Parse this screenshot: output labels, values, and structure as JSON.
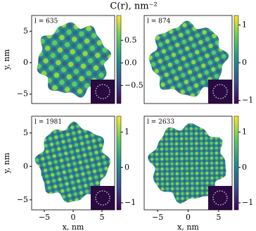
{
  "title": "C(r), nm⁻²",
  "chart_data": [
    {
      "type": "heatmap",
      "annotation": "l = 635",
      "xlim": [
        -7.2,
        7.2
      ],
      "ylim": [
        -6.5,
        7.5
      ],
      "yticks": [
        5,
        0,
        {
          "value": -5,
          "label": "−5"
        }
      ],
      "y_label": "y, nm",
      "clim": [
        -0.9,
        1.05
      ],
      "cticks": [
        0.5,
        {
          "value": 0,
          "label": "0.0"
        },
        {
          "value": -0.5,
          "label": "−0.5"
        }
      ]
    },
    {
      "type": "heatmap",
      "annotation": "l = 874",
      "xlim": [
        -7.2,
        7.2
      ],
      "ylim": [
        -6.5,
        7.5
      ],
      "clim": [
        -1.08,
        1.25
      ],
      "cticks": [
        1,
        0,
        {
          "value": -1,
          "label": "−1"
        }
      ]
    },
    {
      "type": "heatmap",
      "annotation": "l = 1981",
      "xlim": [
        -7.2,
        7.2
      ],
      "ylim": [
        -6.5,
        7.5
      ],
      "yticks": [
        5,
        0,
        {
          "value": -5,
          "label": "−5"
        }
      ],
      "y_label": "y, nm",
      "xticks": [
        {
          "value": -5,
          "label": "−5"
        },
        0,
        5
      ],
      "x_label": "x, nm",
      "clim": [
        -1.2,
        1.45
      ],
      "cticks": [
        1,
        0,
        {
          "value": -1,
          "label": "−1"
        }
      ]
    },
    {
      "type": "heatmap",
      "annotation": "l = 2633",
      "xlim": [
        -7.2,
        7.2
      ],
      "ylim": [
        -6.5,
        7.5
      ],
      "xticks": [
        {
          "value": -5,
          "label": "−5"
        },
        0,
        5
      ],
      "x_label": "x, nm",
      "clim": [
        -1.2,
        1.45
      ],
      "cticks": [
        1,
        0,
        {
          "value": -1,
          "label": "−1"
        }
      ]
    }
  ]
}
